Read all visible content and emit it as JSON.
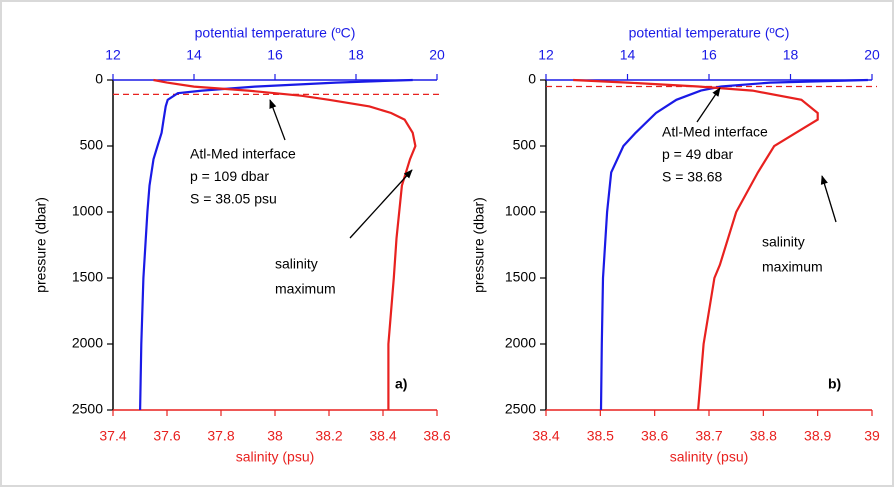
{
  "chart_data": [
    {
      "type": "line",
      "panel_label": "a)",
      "ylabel": "pressure (dbar)",
      "ylim": [
        0,
        2500
      ],
      "y_reversed": true,
      "yticks": [
        0,
        500,
        1000,
        1500,
        2000,
        2500
      ],
      "xlabel": "salinity (psu)",
      "xlim": [
        37.4,
        38.6
      ],
      "xticks": [
        37.4,
        37.6,
        37.8,
        38,
        38.2,
        38.4,
        38.6
      ],
      "xcolor": "#e8211f",
      "x2label": "potential temperature (ºC)",
      "x2lim": [
        12,
        20
      ],
      "x2ticks": [
        12,
        14,
        16,
        18,
        20
      ],
      "x2color": "#1a1ae6",
      "interface_pressure": 109,
      "series": [
        {
          "color": "#1a1ae6",
          "axis": "x2",
          "x": [
            19.4,
            17.5,
            15.5,
            14.2,
            13.6,
            13.35,
            13.3,
            13.25,
            13.2,
            13.1,
            13.0,
            12.9,
            12.85,
            12.75,
            12.7,
            12.67
          ],
          "y": [
            0,
            20,
            50,
            80,
            100,
            150,
            200,
            300,
            400,
            500,
            600,
            800,
            1000,
            1500,
            2000,
            2500
          ]
        },
        {
          "color": "#e8211f",
          "axis": "x",
          "x": [
            37.55,
            37.6,
            37.7,
            37.9,
            38.0,
            38.1,
            38.2,
            38.35,
            38.43,
            38.48,
            38.51,
            38.52,
            38.5,
            38.47,
            38.46,
            38.45,
            38.44,
            38.42,
            38.42
          ],
          "y": [
            0,
            20,
            50,
            80,
            100,
            120,
            150,
            200,
            250,
            300,
            400,
            500,
            600,
            800,
            1000,
            1200,
            1500,
            2000,
            2500
          ]
        }
      ],
      "annotations": [
        {
          "lines": [
            "Atl-Med interface",
            "p = 109 dbar",
            "S = 38.05 psu"
          ]
        },
        {
          "lines": [
            "salinity",
            "maximum"
          ]
        }
      ]
    },
    {
      "type": "line",
      "panel_label": "b)",
      "ylabel": "pressure (dbar)",
      "ylim": [
        0,
        2500
      ],
      "y_reversed": true,
      "yticks": [
        0,
        500,
        1000,
        1500,
        2000,
        2500
      ],
      "xlabel": "salinity (psu)",
      "xlim": [
        38.4,
        39
      ],
      "xticks": [
        38.4,
        38.5,
        38.6,
        38.7,
        38.8,
        38.9,
        39
      ],
      "xcolor": "#e8211f",
      "x2label": "potential temperature (ºC)",
      "x2lim": [
        12,
        20
      ],
      "x2ticks": [
        12,
        14,
        16,
        18,
        20
      ],
      "x2color": "#1a1ae6",
      "interface_pressure": 49,
      "series": [
        {
          "color": "#1a1ae6",
          "axis": "x2",
          "x": [
            19.9,
            17.5,
            16.3,
            15.8,
            15.2,
            14.7,
            14.2,
            13.9,
            13.6,
            13.5,
            13.4,
            13.37,
            13.35
          ],
          "y": [
            0,
            20,
            49,
            80,
            150,
            250,
            400,
            500,
            700,
            1000,
            1500,
            2000,
            2500
          ]
        },
        {
          "color": "#e8211f",
          "axis": "x",
          "x": [
            38.45,
            38.55,
            38.68,
            38.78,
            38.87,
            38.9,
            38.9,
            38.86,
            38.82,
            38.79,
            38.75,
            38.72,
            38.71,
            38.69,
            38.68
          ],
          "y": [
            0,
            20,
            49,
            80,
            150,
            250,
            300,
            400,
            500,
            700,
            1000,
            1400,
            1500,
            2000,
            2500
          ]
        }
      ],
      "annotations": [
        {
          "lines": [
            "Atl-Med interface",
            "p = 49 dbar",
            "S = 38.68"
          ]
        },
        {
          "lines": [
            "salinity",
            "maximum"
          ]
        }
      ]
    }
  ]
}
